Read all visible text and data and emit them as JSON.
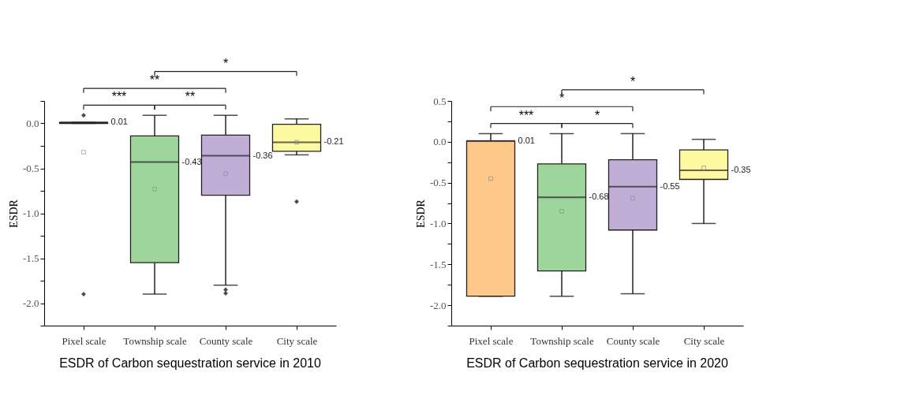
{
  "chart_data": [
    {
      "type": "box",
      "title": "ESDR of Carbon sequestration service  in 2010",
      "ylabel": "ESDR",
      "categories": [
        "Pixel scale",
        "Township scale",
        "County scale",
        "City scale"
      ],
      "colors": [
        "#fdc98a",
        "#9dd59a",
        "#c1aed6",
        "#fdf9a0"
      ],
      "boxes": [
        {
          "low": 0,
          "q1": 0,
          "median": 0.01,
          "q3": 0.01,
          "high": 0.01,
          "mean": -0.32,
          "outliers": [
            0.09,
            -1.9
          ]
        },
        {
          "low": -1.9,
          "q1": -1.55,
          "median": -0.43,
          "q3": -0.14,
          "high": 0.09,
          "mean": -0.73
        },
        {
          "low": -1.8,
          "q1": -0.8,
          "median": -0.36,
          "q3": -0.13,
          "high": 0.09,
          "mean": -0.56,
          "outliers": [
            -1.85,
            -1.89
          ]
        },
        {
          "low": -0.35,
          "q1": -0.31,
          "median": -0.21,
          "q3": -0.01,
          "high": 0.05,
          "mean": -0.21,
          "outliers": [
            -0.87
          ]
        }
      ],
      "ylim": [
        -2.25,
        0.25
      ],
      "yticks": [
        {
          "value": 0.25,
          "label": null
        },
        {
          "value": 0,
          "label": "0.0"
        },
        {
          "value": -0.25,
          "label": null
        },
        {
          "value": -0.5,
          "label": "-0.5"
        },
        {
          "value": -0.75,
          "label": null
        },
        {
          "value": -1,
          "label": "-1.0"
        },
        {
          "value": -1.25,
          "label": null
        },
        {
          "value": -1.5,
          "label": "-1.5"
        },
        {
          "value": -1.75,
          "label": null
        },
        {
          "value": -2,
          "label": "-2.0"
        },
        {
          "value": -2.25,
          "label": null
        }
      ],
      "annotations": [
        "0.01",
        "-0.43",
        "-0.36",
        "-0.21",
        "*",
        "**",
        "***",
        "**"
      ]
    },
    {
      "type": "box",
      "title": "ESDR of Carbon sequestration service  in 2020",
      "ylabel": "ESDR",
      "categories": [
        "Pixel scale",
        "Township scale",
        "County scale",
        "City scale"
      ],
      "colors": [
        "#fdc98a",
        "#9dd59a",
        "#c1aed6",
        "#fdf9a0"
      ],
      "boxes": [
        {
          "low": -1.89,
          "q1": -1.89,
          "median": 0.01,
          "q3": 0.01,
          "high": 0.1,
          "mean": -0.45
        },
        {
          "low": -1.89,
          "q1": -1.58,
          "median": -0.68,
          "q3": -0.27,
          "high": 0.1,
          "mean": -0.85
        },
        {
          "low": -1.86,
          "q1": -1.08,
          "median": -0.55,
          "q3": -0.22,
          "high": 0.1,
          "mean": -0.69
        },
        {
          "low": -1.0,
          "q1": -0.46,
          "median": -0.35,
          "q3": -0.1,
          "high": 0.03,
          "mean": -0.32
        }
      ],
      "ylim": [
        -2.25,
        0.5
      ],
      "yticks": [
        {
          "value": 0.5,
          "label": "0.5"
        },
        {
          "value": 0.25,
          "label": null
        },
        {
          "value": 0,
          "label": "0.0"
        },
        {
          "value": -0.25,
          "label": null
        },
        {
          "value": -0.5,
          "label": "-0.5"
        },
        {
          "value": -0.75,
          "label": null
        },
        {
          "value": -1,
          "label": "-1.0"
        },
        {
          "value": -1.25,
          "label": null
        },
        {
          "value": -1.5,
          "label": "-1.5"
        },
        {
          "value": -1.75,
          "label": null
        },
        {
          "value": -2,
          "label": "-2.0"
        },
        {
          "value": -2.25,
          "label": null
        }
      ],
      "annotations": [
        "0.01",
        "-0.68",
        "-0.55",
        "-0.35",
        "*",
        "*",
        "***",
        "*"
      ]
    }
  ]
}
